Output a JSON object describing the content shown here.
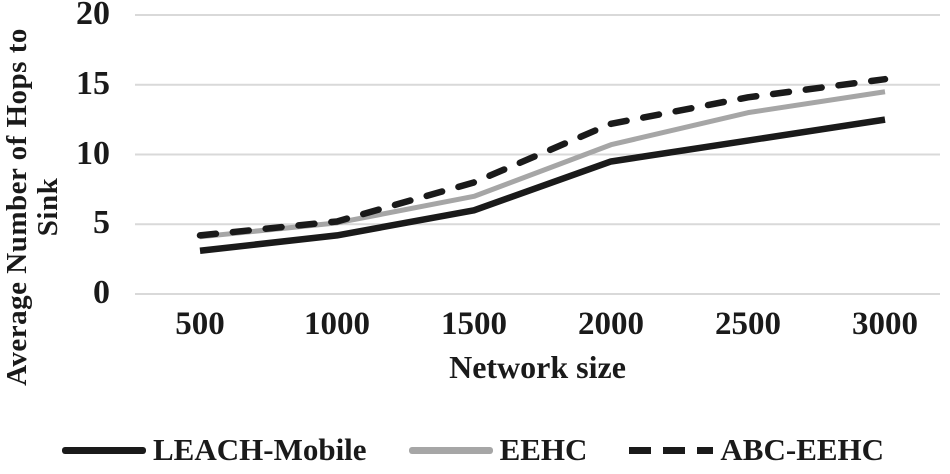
{
  "chart_data": {
    "type": "line",
    "xlabel": "Network size",
    "ylabel": "Average Number of Hops to Sink",
    "ylabel_line1": "Average Number of Hops to",
    "ylabel_line2": "Sink",
    "categories": [
      500,
      1000,
      1500,
      2000,
      2500,
      3000
    ],
    "x_tick_labels": [
      "500",
      "1000",
      "1500",
      "2000",
      "2500",
      "3000"
    ],
    "y_ticks": [
      0,
      5,
      10,
      15,
      20
    ],
    "ylim": [
      0,
      20
    ],
    "grid": "horizontal-only",
    "legend_position": "bottom-left",
    "series": [
      {
        "name": "LEACH-Mobile",
        "style": "solid",
        "color": "#1a1a1a",
        "values": [
          3.1,
          4.2,
          6.0,
          9.5,
          11.0,
          12.5
        ]
      },
      {
        "name": "EEHC",
        "style": "solid",
        "color": "#a6a6a6",
        "values": [
          4.1,
          5.1,
          7.0,
          10.7,
          13.0,
          14.5
        ]
      },
      {
        "name": "ABC-EEHC",
        "style": "dashed",
        "color": "#1a1a1a",
        "values": [
          4.2,
          5.2,
          8.0,
          12.2,
          14.1,
          15.4
        ]
      }
    ],
    "colors": {
      "line_black": "#1a1a1a",
      "line_gray": "#a6a6a6",
      "gridline": "#d9d9d9",
      "background": "#ffffff",
      "text": "#1a1a1a"
    }
  }
}
